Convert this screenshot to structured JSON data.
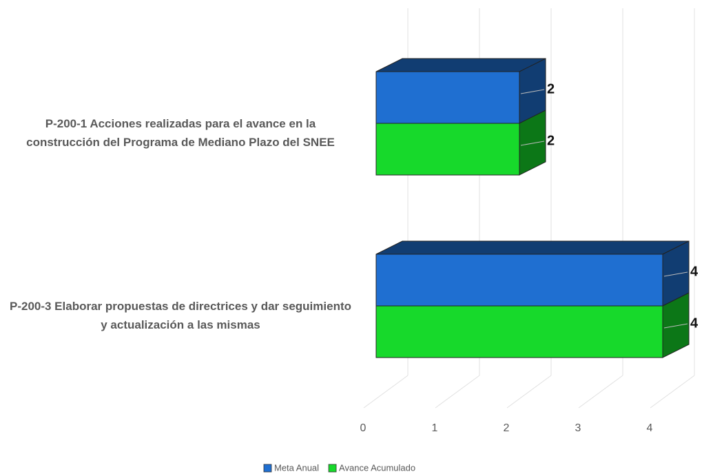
{
  "chart_data": {
    "type": "bar3d_horizontal",
    "categories": [
      "P-200-1 Acciones realizadas para el avance en la construcción del Programa de Mediano Plazo del SNEE",
      "P-200-3 Elaborar propuestas de directrices y dar seguimiento y actualización a las mismas"
    ],
    "series": [
      {
        "name": "Meta Anual",
        "color": "#1f6fd1",
        "values": [
          2,
          4
        ]
      },
      {
        "name": "Avance Acumulado",
        "color": "#17d92b",
        "values": [
          2,
          4
        ]
      }
    ],
    "xlim": [
      0,
      4
    ],
    "xticks": [
      0,
      1,
      2,
      3,
      4
    ],
    "grid": true,
    "legend": "bottom"
  }
}
